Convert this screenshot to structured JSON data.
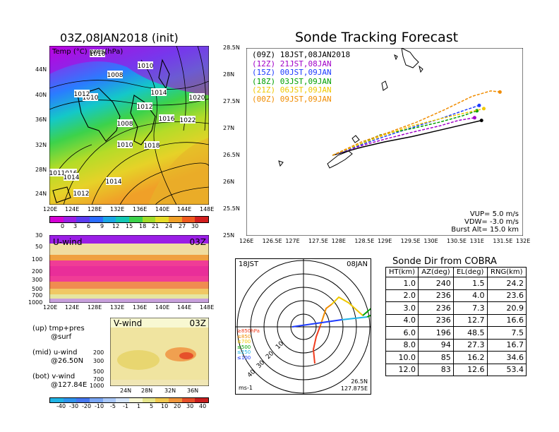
{
  "header": {
    "init_title": "03Z,08JAN2018 (init)",
    "main_title": "Sonde Tracking Forecast"
  },
  "map_panel": {
    "label": "Temp (°C) pres(hPa)",
    "lon_ticks": [
      "120E",
      "124E",
      "128E",
      "132E",
      "136E",
      "140E",
      "144E",
      "148E"
    ],
    "lat_ticks": [
      "44N",
      "40N",
      "36N",
      "32N",
      "28N",
      "24N"
    ],
    "isobar_labels": [
      "1010",
      "1010",
      "1008",
      "1010",
      "1012",
      "1012",
      "1014",
      "1020",
      "1012",
      "1008",
      "1016",
      "1022",
      "1010",
      "1018",
      "1018",
      "1016",
      "1014",
      "1014",
      "1012"
    ],
    "colorbar_ticks": [
      "0",
      "3",
      "6",
      "9",
      "12",
      "15",
      "18",
      "21",
      "24",
      "27",
      "30"
    ],
    "colorbar_colors": [
      "#d400d4",
      "#9a1ee6",
      "#5a3cf0",
      "#2a6cff",
      "#1aa6e6",
      "#14c8b4",
      "#3cd24b",
      "#a0dc2a",
      "#e6dc28",
      "#f0a028",
      "#f05a1e",
      "#d21e1e"
    ]
  },
  "uwind_panel": {
    "label": "U-wind",
    "time": "03Z",
    "p_ticks": [
      "30",
      "50",
      "100",
      "200",
      "300",
      "500",
      "700",
      "1000"
    ],
    "lon_ticks": [
      "120E",
      "124E",
      "128E",
      "132E",
      "136E",
      "140E",
      "144E",
      "148E"
    ]
  },
  "vwind_panel": {
    "label": "V-wind",
    "time": "03Z",
    "p_ticks": [
      "200",
      "300",
      "500",
      "700",
      "1000"
    ],
    "lat_ticks": [
      "24N",
      "28N",
      "32N",
      "36N"
    ],
    "colorbar_ticks": [
      "-40",
      "-30",
      "-20",
      "-10",
      "-5",
      "-1",
      "1",
      "5",
      "10",
      "20",
      "30",
      "40"
    ],
    "colorbar_colors": [
      "#20b4e6",
      "#2e94ee",
      "#4678f0",
      "#7aa6f4",
      "#aac8f8",
      "#d6e6fa",
      "#f8f8d2",
      "#e6e68c",
      "#f0c850",
      "#f0963c",
      "#e6502a",
      "#c81e1e"
    ]
  },
  "notes": {
    "up": "(up) tmp+pres",
    "up2": "@surf",
    "mid": "(mid) u-wind",
    "mid2": "@26.50N",
    "bot": "(bot) v-wind",
    "bot2": "@127.84E"
  },
  "track_legend": [
    {
      "code": "(09Z)",
      "time": "18JST,08JAN2018",
      "color": "#000000"
    },
    {
      "code": "(12Z)",
      "time": "21JST,08JAN",
      "color": "#a000c8"
    },
    {
      "code": "(15Z)",
      "time": "00JST,09JAN",
      "color": "#1e3cff"
    },
    {
      "code": "(18Z)",
      "time": "03JST,09JAN",
      "color": "#00a000"
    },
    {
      "code": "(21Z)",
      "time": "06JST,09JAN",
      "color": "#f0c800"
    },
    {
      "code": "(00Z)",
      "time": "09JST,09JAN",
      "color": "#f08c00"
    }
  ],
  "track_params": {
    "vup": "VUP= 5.0 m/s",
    "vdw": "VDW= -3.0 m/s",
    "burst": "Burst Alt= 15.0 km"
  },
  "chart_data": {
    "type": "line",
    "title": "Sonde Tracking Forecast",
    "xlim": [
      126,
      132
    ],
    "ylim": [
      25,
      28.5
    ],
    "x_ticks": [
      "126E",
      "126.5E",
      "127E",
      "127.5E",
      "128E",
      "128.5E",
      "129E",
      "129.5E",
      "130E",
      "130.5E",
      "131E",
      "131.5E",
      "132E"
    ],
    "y_ticks": [
      "25N",
      "25.5N",
      "26N",
      "26.5N",
      "27N",
      "27.5N",
      "28N",
      "28.5N"
    ],
    "series": [
      {
        "name": "(09Z)",
        "color": "#000000",
        "points": [
          [
            127.87,
            26.5
          ],
          [
            128.5,
            26.65
          ],
          [
            129.0,
            26.75
          ],
          [
            129.6,
            26.85
          ],
          [
            130.2,
            26.97
          ],
          [
            130.7,
            27.07
          ],
          [
            131.1,
            27.15
          ]
        ]
      },
      {
        "name": "(12Z)",
        "color": "#a000c8",
        "points": [
          [
            127.87,
            26.5
          ],
          [
            128.5,
            26.68
          ],
          [
            129.0,
            26.8
          ],
          [
            129.6,
            26.93
          ],
          [
            130.2,
            27.05
          ],
          [
            130.6,
            27.15
          ],
          [
            130.95,
            27.2
          ]
        ]
      },
      {
        "name": "(15Z)",
        "color": "#1e3cff",
        "points": [
          [
            127.87,
            26.5
          ],
          [
            128.5,
            26.7
          ],
          [
            129.0,
            26.85
          ],
          [
            129.6,
            27.02
          ],
          [
            130.2,
            27.18
          ],
          [
            130.7,
            27.33
          ],
          [
            131.05,
            27.43
          ]
        ]
      },
      {
        "name": "(18Z)",
        "color": "#00a000",
        "points": [
          [
            127.87,
            26.5
          ],
          [
            128.5,
            26.72
          ],
          [
            128.9,
            26.88
          ],
          [
            129.6,
            27.0
          ],
          [
            130.2,
            27.12
          ],
          [
            130.7,
            27.24
          ],
          [
            131.0,
            27.33
          ]
        ]
      },
      {
        "name": "(21Z)",
        "color": "#f0c800",
        "points": [
          [
            127.87,
            26.5
          ],
          [
            128.5,
            26.72
          ],
          [
            129.0,
            26.88
          ],
          [
            129.6,
            27.05
          ],
          [
            130.3,
            27.2
          ],
          [
            130.8,
            27.3
          ],
          [
            131.15,
            27.37
          ]
        ]
      },
      {
        "name": "(00Z)",
        "color": "#f08c00",
        "points": [
          [
            127.87,
            26.5
          ],
          [
            128.5,
            26.75
          ],
          [
            129.1,
            26.93
          ],
          [
            129.7,
            27.12
          ],
          [
            130.3,
            27.35
          ],
          [
            130.9,
            27.6
          ],
          [
            131.3,
            27.7
          ],
          [
            131.5,
            27.68
          ]
        ]
      }
    ]
  },
  "polar": {
    "time_label": "18JST",
    "date_label": "08JAN",
    "unit": "ms-1",
    "location_lat": "26.5N",
    "location_lon": "127.875E",
    "ring_labels": [
      "10",
      "20",
      "30",
      "40"
    ],
    "level_legend": [
      {
        "label": "≥850hPa",
        "color": "#f03c1e"
      },
      {
        "label": "≤850",
        "color": "#f08c00"
      },
      {
        "label": "≤700",
        "color": "#f0c800"
      },
      {
        "label": "≤500",
        "color": "#00a000"
      },
      {
        "label": "≤250",
        "color": "#1eb4e6"
      },
      {
        "label": "≤100",
        "color": "#1e3cff"
      }
    ]
  },
  "sonde_table": {
    "title": "Sonde Dir from COBRA",
    "headers": [
      "HT(km)",
      "AZ(deg)",
      "EL(deg)",
      "RNG(km)"
    ],
    "rows": [
      [
        "1.0",
        "240",
        "1.5",
        "24.2"
      ],
      [
        "2.0",
        "236",
        "4.0",
        "23.6"
      ],
      [
        "3.0",
        "236",
        "7.3",
        "20.9"
      ],
      [
        "4.0",
        "236",
        "12.7",
        "16.6"
      ],
      [
        "6.0",
        "196",
        "48.5",
        "7.5"
      ],
      [
        "8.0",
        "94",
        "27.3",
        "16.7"
      ],
      [
        "10.0",
        "85",
        "16.2",
        "34.6"
      ],
      [
        "12.0",
        "83",
        "12.6",
        "53.4"
      ]
    ]
  }
}
